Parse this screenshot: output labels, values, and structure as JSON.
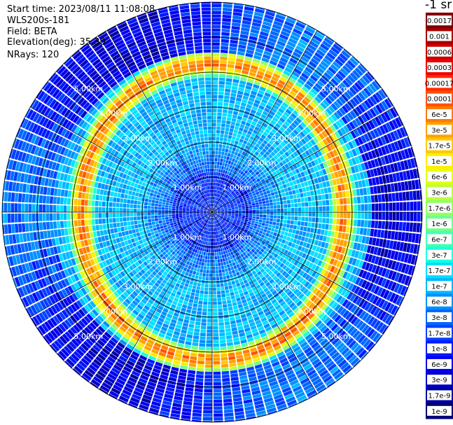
{
  "header": {
    "start_time": "Start time: 2023/08/11 11:08:08",
    "instrument": "WLS200s-181",
    "field": "Field: BETA",
    "elevation": "Elevation(deg): 35.30",
    "nrays": "NRays: 120"
  },
  "colorbar": {
    "unit_label": "-1 sr",
    "labels": [
      "0.0017",
      "0.001",
      "0.0006",
      "0.0003",
      "0.00017",
      "0.0001",
      "6e-5",
      "3e-5",
      "1.7e-5",
      "1e-5",
      "6e-6",
      "3e-6",
      "1.7e-6",
      "1e-6",
      "6e-7",
      "3e-7",
      "1.7e-7",
      "1e-7",
      "6e-8",
      "3e-8",
      "1.7e-8",
      "1e-8",
      "6e-9",
      "3e-9",
      "1.7e-9",
      "1e-9"
    ],
    "colors": [
      "#7f0000",
      "#a50000",
      "#cc0000",
      "#f00000",
      "#ff2a00",
      "#ff5200",
      "#ff7a00",
      "#ffa200",
      "#ffc800",
      "#ffee00",
      "#e4ff14",
      "#bcff3c",
      "#94ff64",
      "#6cff8c",
      "#44ffb4",
      "#1cffdc",
      "#00e0ff",
      "#00b8ff",
      "#0090ff",
      "#0068ff",
      "#0040ff",
      "#0018ff",
      "#0000f0",
      "#0000c8",
      "#0000a0",
      "#000078"
    ]
  },
  "chart_data": {
    "type": "heatmap",
    "projection": "polar PPI",
    "field": "BETA",
    "nrays": 120,
    "range_labels": [
      "1.00km",
      "2.00km",
      "3.00km",
      "4.00km",
      "5.00km"
    ],
    "max_range_km": 6.0,
    "color_scale": "log",
    "vmin": 1e-09,
    "vmax": 0.0017,
    "ring_feature": {
      "center_km": 4.0,
      "peak_value": 6e-05,
      "note": "enhanced backscatter ring"
    }
  }
}
